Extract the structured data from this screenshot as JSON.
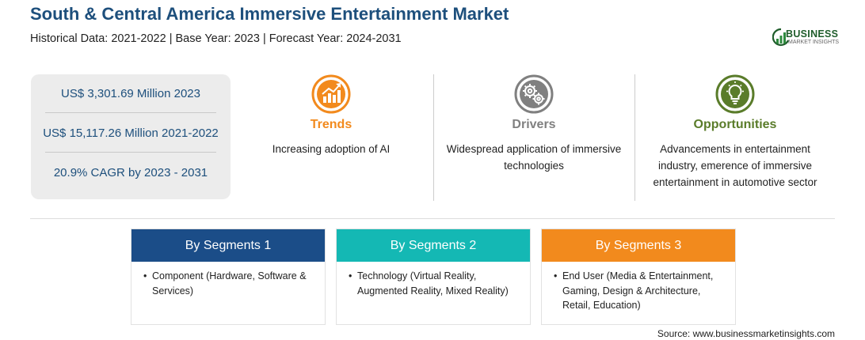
{
  "header": {
    "title": "South & Central America Immersive Entertainment Market",
    "subtitle": "Historical Data: 2021-2022 | Base Year: 2023 | Forecast Year: 2024-2031"
  },
  "logo": {
    "word": "BUSINESS",
    "sub": "MARKET INSIGHTS"
  },
  "stats": [
    "US$ 3,301.69 Million 2023",
    "US$ 15,117.26 Million 2021-2022",
    "20.9% CAGR by 2023 - 2031"
  ],
  "columns": {
    "trends": {
      "heading": "Trends",
      "body": "Increasing adoption of AI",
      "color": "#f28a1d",
      "icon": "rising-chart-icon"
    },
    "drivers": {
      "heading": "Drivers",
      "body": "Widespread application of immersive technologies",
      "color": "#808080",
      "icon": "gears-icon"
    },
    "opportunities": {
      "heading": "Opportunities",
      "body": "Advancements in entertainment industry, emerence of immersive entertainment in automotive sector",
      "color": "#5a7c2a",
      "icon": "lightbulb-icon"
    }
  },
  "segments": [
    {
      "heading": "By Segments 1",
      "body": "Component (Hardware, Software & Services)",
      "color": "#1b4d88"
    },
    {
      "heading": "By Segments 2",
      "body": "Technology (Virtual Reality, Augmented Reality, Mixed Reality)",
      "color": "#14b8b4"
    },
    {
      "heading": "By Segments 3",
      "body": "End User (Media & Entertainment, Gaming, Design & Architecture, Retail, Education)",
      "color": "#f28a1d"
    }
  ],
  "source": "Source: www.businessmarketinsights.com"
}
